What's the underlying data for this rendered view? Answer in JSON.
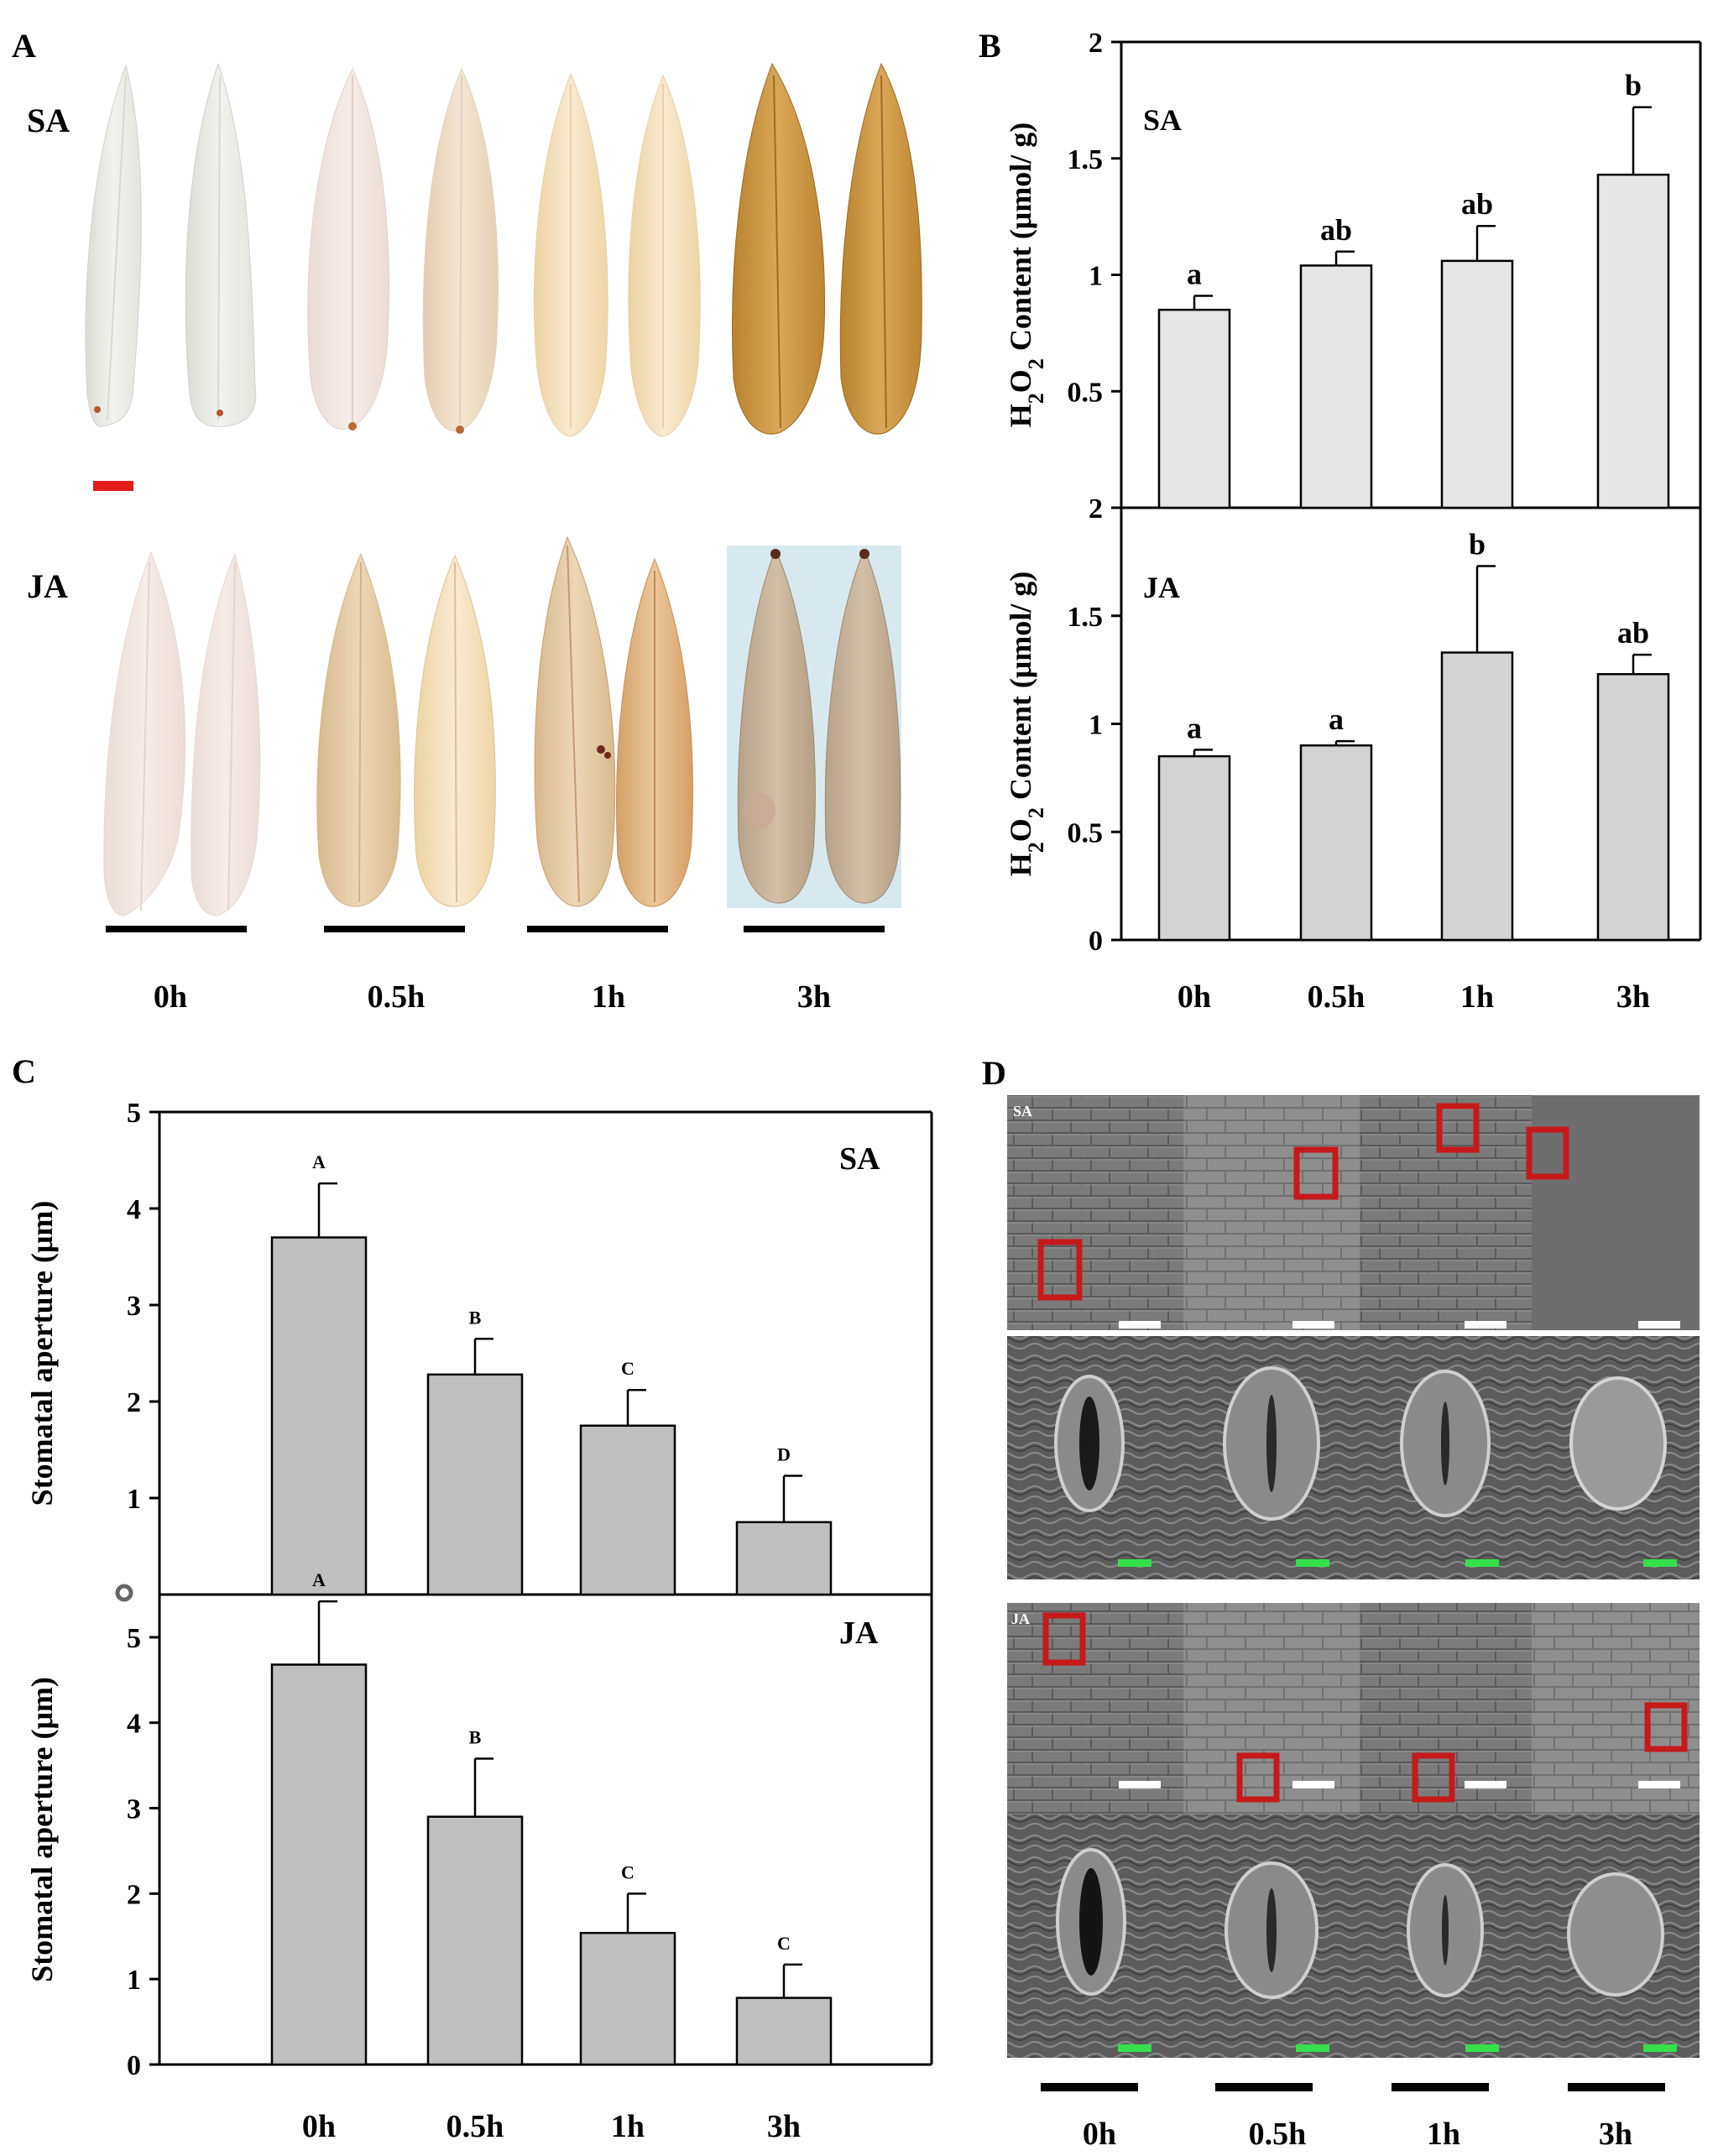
{
  "panels": {
    "a": "A",
    "b": "B",
    "c": "C",
    "d": "D"
  },
  "time_points": [
    "0h",
    "0.5h",
    "1h",
    "3h"
  ],
  "panel_a": {
    "row1_label": "SA",
    "row2_label": "JA"
  },
  "panel_d": {
    "row1_label": "SA",
    "row2_label": "JA"
  },
  "colors": {
    "bar_b_sa": "#e6e6e6",
    "bar_b_ja": "#d3d3d3",
    "bar_c": "#bfbfbf",
    "scale_red": "#e31b1b",
    "sem_frame": "#c61a1a",
    "scale_green": "#35e04a"
  },
  "chart_data": [
    {
      "id": "B-SA",
      "type": "bar",
      "treatment_label": "SA",
      "ylabel": "H2O2 Content (μmol/ g)",
      "ylabel_parts": {
        "main": "H",
        "sub1": "2",
        "mid": "O",
        "sub2": "2",
        "rest": " Content (μmol/ g)"
      },
      "ylim": [
        0,
        2
      ],
      "yticks": [
        "2",
        "1.5",
        "1",
        "0.5"
      ],
      "ytick_values": [
        2,
        1.5,
        1,
        0.5
      ],
      "categories": [
        "0h",
        "0.5h",
        "1h",
        "3h"
      ],
      "values": [
        0.85,
        1.04,
        1.06,
        1.43
      ],
      "errors": [
        0.06,
        0.06,
        0.15,
        0.29
      ],
      "letters": [
        "a",
        "ab",
        "ab",
        "b"
      ]
    },
    {
      "id": "B-JA",
      "type": "bar",
      "treatment_label": "JA",
      "ylabel": "H2O2 Content (μmol/ g)",
      "ylabel_parts": {
        "main": "H",
        "sub1": "2",
        "mid": "O",
        "sub2": "2",
        "rest": " Content (μmol/ g)"
      },
      "ylim": [
        0,
        2
      ],
      "yticks": [
        "2",
        "1.5",
        "1",
        "0.5",
        "0"
      ],
      "ytick_values": [
        2,
        1.5,
        1,
        0.5,
        0
      ],
      "categories": [
        "0h",
        "0.5h",
        "1h",
        "3h"
      ],
      "values": [
        0.85,
        0.9,
        1.33,
        1.23
      ],
      "errors": [
        0.03,
        0.02,
        0.4,
        0.09
      ],
      "letters": [
        "a",
        "a",
        "b",
        "ab"
      ]
    },
    {
      "id": "C-SA",
      "type": "bar",
      "treatment_label": "SA",
      "ylabel": "Stomatal aperture (μm)",
      "ylim": [
        0,
        5
      ],
      "yticks": [
        "5",
        "4",
        "3",
        "2",
        "1"
      ],
      "ytick_values": [
        5,
        4,
        3,
        2,
        1
      ],
      "categories": [
        "0h",
        "0.5h",
        "1h",
        "3h"
      ],
      "values": [
        3.7,
        2.28,
        1.75,
        0.75
      ],
      "errors": [
        0.56,
        0.37,
        0.37,
        0.48
      ],
      "letters": [
        "A",
        "B",
        "C",
        "D"
      ]
    },
    {
      "id": "C-JA",
      "type": "bar",
      "treatment_label": "JA",
      "ylabel": "Stomatal aperture (μm)",
      "ylim": [
        0,
        5.5
      ],
      "yticks": [
        "5",
        "4",
        "3",
        "2",
        "1",
        "0"
      ],
      "ytick_values": [
        5,
        4,
        3,
        2,
        1,
        0
      ],
      "categories": [
        "0h",
        "0.5h",
        "1h",
        "3h"
      ],
      "values": [
        4.68,
        2.9,
        1.54,
        0.78
      ],
      "errors": [
        0.74,
        0.68,
        0.46,
        0.39
      ],
      "letters": [
        "A",
        "B",
        "C",
        "C"
      ]
    }
  ]
}
